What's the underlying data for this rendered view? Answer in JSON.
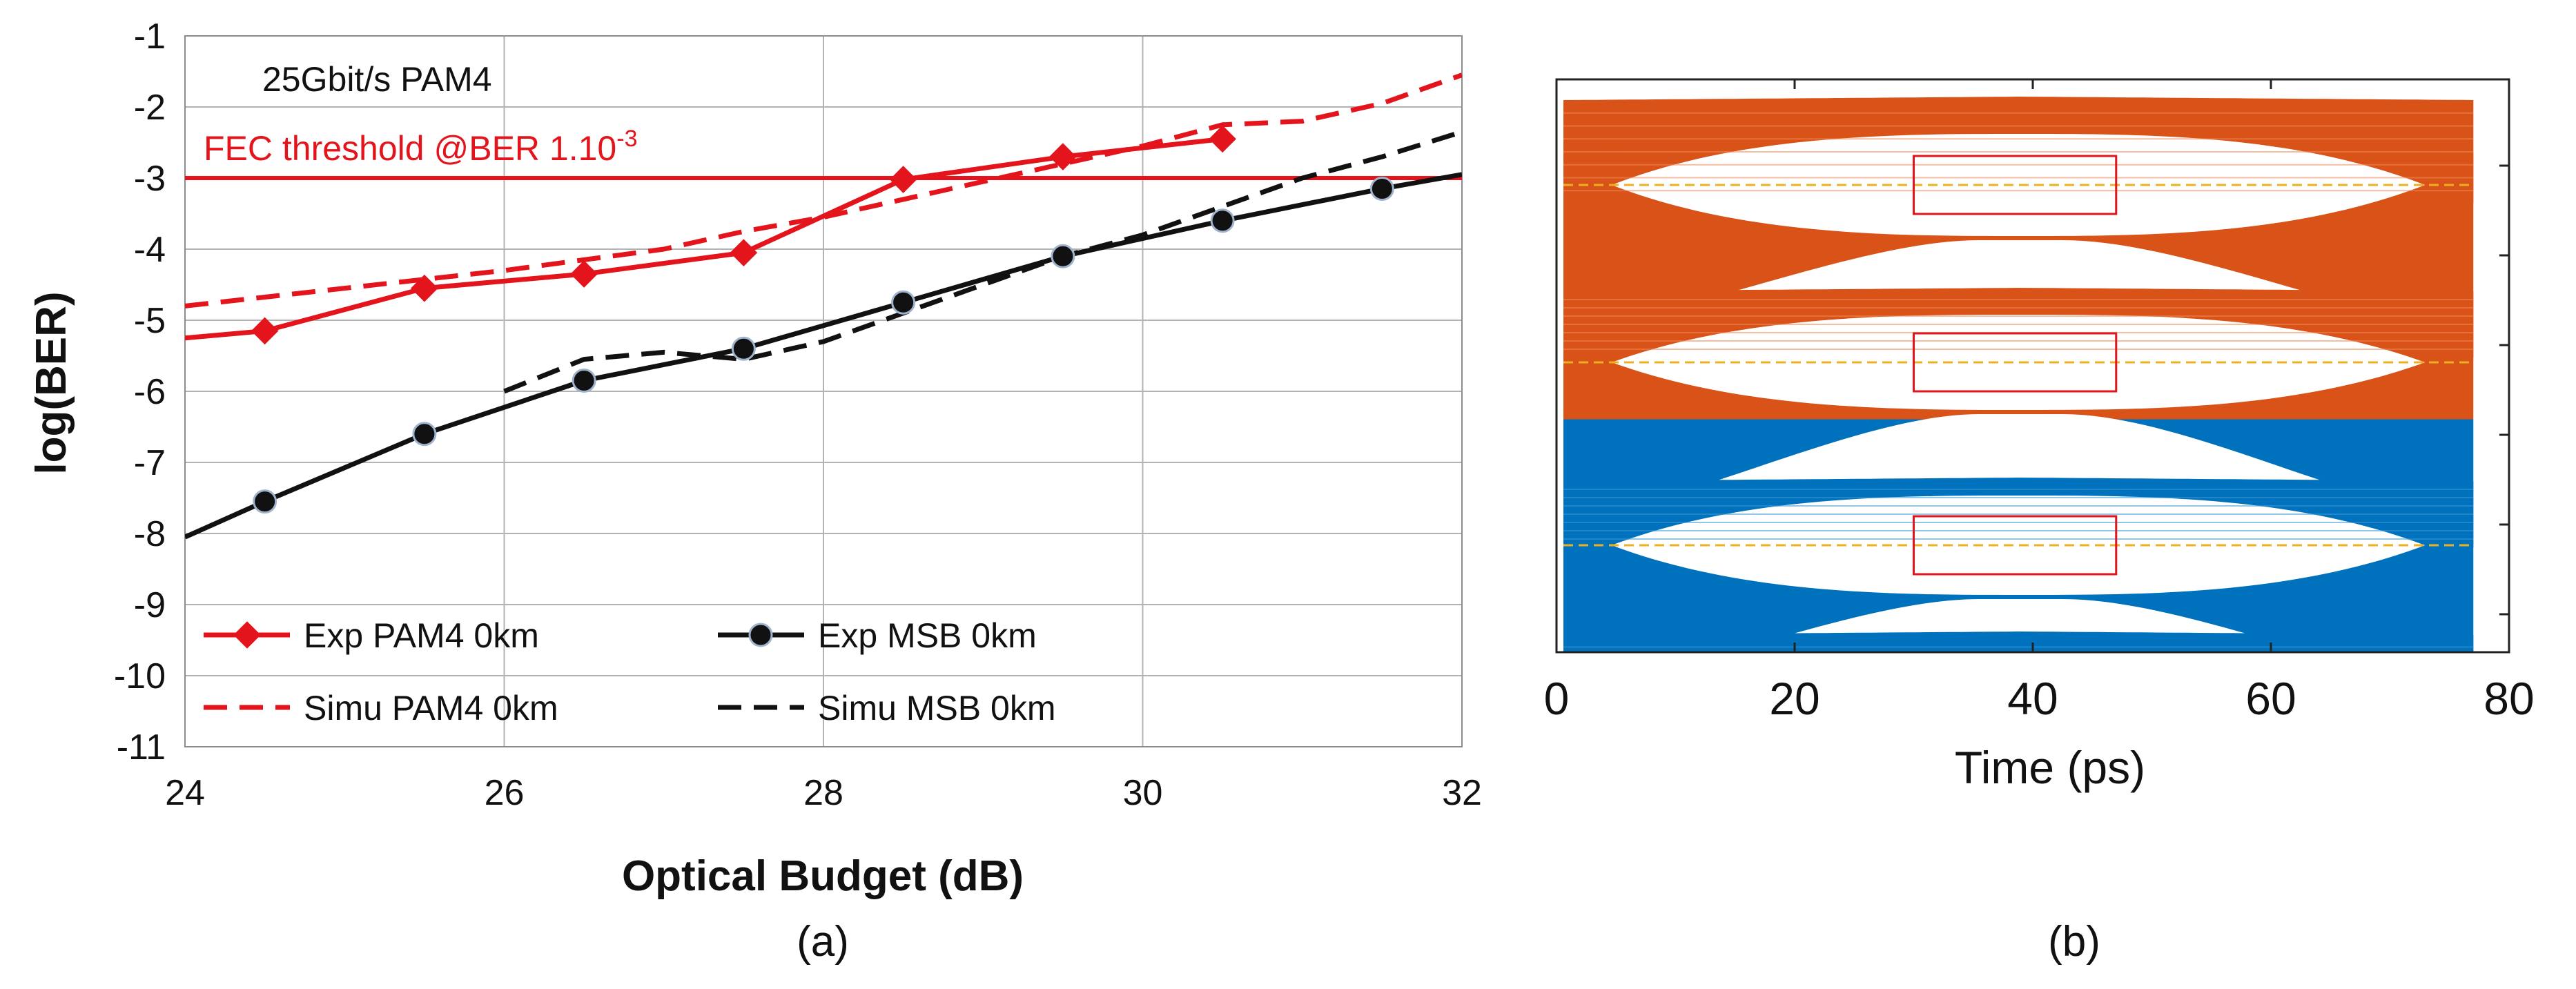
{
  "chart_data": [
    {
      "type": "line",
      "panel_label": "(a)",
      "title": "",
      "annotation": "25Gbit/s PAM4",
      "threshold": {
        "y": -3,
        "label_main": "FEC threshold @BER 1.10",
        "label_sup": "-3",
        "color": "#e3141b"
      },
      "xlabel": "Optical Budget (dB)",
      "ylabel": "log(BER)",
      "xlim": [
        24,
        32
      ],
      "ylim": [
        -11,
        -1
      ],
      "xticks": [
        24,
        26,
        28,
        30,
        32
      ],
      "xtick_labels": [
        "24",
        "26",
        "28",
        "30",
        "32"
      ],
      "yticks": [
        -1,
        -2,
        -3,
        -4,
        -5,
        -6,
        -7,
        -8,
        -9,
        -10,
        -11
      ],
      "ytick_labels": [
        "-1",
        "-2",
        "-3",
        "-4",
        "-5",
        "-6",
        "-7",
        "-8",
        "-9",
        "-10",
        "-11"
      ],
      "grid": true,
      "legend_position": "bottom-left",
      "series": [
        {
          "name": "Exp PAM4 0km",
          "color": "#e3141b",
          "style": "solid",
          "marker": "diamond",
          "x": [
            24,
            24.5,
            25.5,
            26.5,
            27.5,
            28.5,
            29.5,
            30.5
          ],
          "y": [
            -5.25,
            -5.15,
            -4.55,
            -4.35,
            -4.05,
            -3.02,
            -2.7,
            -2.45
          ],
          "marker_x": [
            24.5,
            25.5,
            26.5,
            27.5,
            28.5,
            29.5,
            30.5
          ],
          "marker_y": [
            -5.15,
            -4.55,
            -4.35,
            -4.05,
            -3.02,
            -2.7,
            -2.45
          ]
        },
        {
          "name": "Exp MSB 0km",
          "color": "#111111",
          "style": "solid",
          "marker": "circle",
          "x": [
            24,
            24.5,
            25.5,
            26.5,
            27.5,
            28.5,
            29.5,
            30.5,
            31.5,
            32
          ],
          "y": [
            -8.05,
            -7.55,
            -6.6,
            -5.85,
            -5.4,
            -4.75,
            -4.1,
            -3.6,
            -3.15,
            -2.95
          ],
          "marker_x": [
            24.5,
            25.5,
            26.5,
            27.5,
            28.5,
            29.5,
            30.5,
            31.5
          ],
          "marker_y": [
            -7.55,
            -6.6,
            -5.85,
            -5.4,
            -4.75,
            -4.1,
            -3.6,
            -3.15
          ]
        },
        {
          "name": "Simu PAM4 0km",
          "color": "#e3141b",
          "style": "dashed",
          "marker": "none",
          "x": [
            24,
            25,
            26,
            27,
            27.5,
            28,
            28.5,
            29,
            29.5,
            30,
            30.5,
            31,
            31.5,
            32
          ],
          "y": [
            -4.8,
            -4.55,
            -4.3,
            -4.0,
            -3.75,
            -3.55,
            -3.3,
            -3.05,
            -2.8,
            -2.55,
            -2.25,
            -2.2,
            -1.95,
            -1.55
          ]
        },
        {
          "name": "Simu MSB 0km",
          "color": "#111111",
          "style": "dashed",
          "marker": "none",
          "x": [
            26,
            26.5,
            27,
            27.5,
            28,
            28.5,
            29,
            29.5,
            30,
            30.5,
            31,
            31.5,
            32
          ],
          "y": [
            -6.0,
            -5.55,
            -5.45,
            -5.55,
            -5.3,
            -4.9,
            -4.5,
            -4.1,
            -3.8,
            -3.4,
            -3.0,
            -2.7,
            -2.35
          ]
        }
      ]
    },
    {
      "type": "eye-diagram",
      "panel_label": "(b)",
      "xlabel": "Time (ps)",
      "ylabel": "",
      "xlim": [
        0,
        80
      ],
      "xticks": [
        0,
        20,
        40,
        60,
        80
      ],
      "xtick_labels": [
        "0",
        "20",
        "40",
        "60",
        "80"
      ],
      "colors": {
        "upper": "#d95319",
        "lower": "#0072bd",
        "guide": "#edb120",
        "box": "#e3141b"
      },
      "eye_levels": 4,
      "eye_center_ps": 39,
      "mask_time_range_ps": [
        30,
        47
      ]
    }
  ]
}
